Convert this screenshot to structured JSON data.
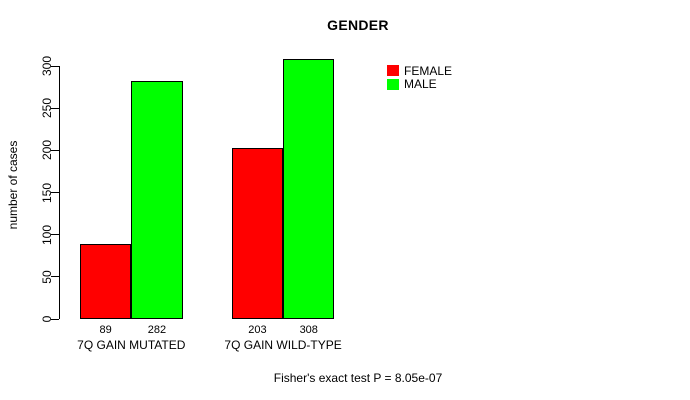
{
  "chart_data": {
    "type": "bar",
    "title": "GENDER",
    "ylabel": "number of cases",
    "xlabel": "",
    "categories": [
      "7Q GAIN MUTATED",
      "7Q GAIN WILD-TYPE"
    ],
    "series": [
      {
        "name": "FEMALE",
        "color": "#ff0000",
        "values": [
          89,
          203
        ]
      },
      {
        "name": "MALE",
        "color": "#00ff00",
        "values": [
          282,
          308
        ]
      }
    ],
    "y_ticks": [
      0,
      50,
      100,
      150,
      200,
      250,
      300
    ],
    "ylim": [
      0,
      310
    ],
    "grid": false,
    "legend_position": "top-right",
    "bar_border_color": "#000000",
    "axis_color": "#000000",
    "background": "#ffffff",
    "footnote": "Fisher's exact test P = 8.05e-07"
  }
}
